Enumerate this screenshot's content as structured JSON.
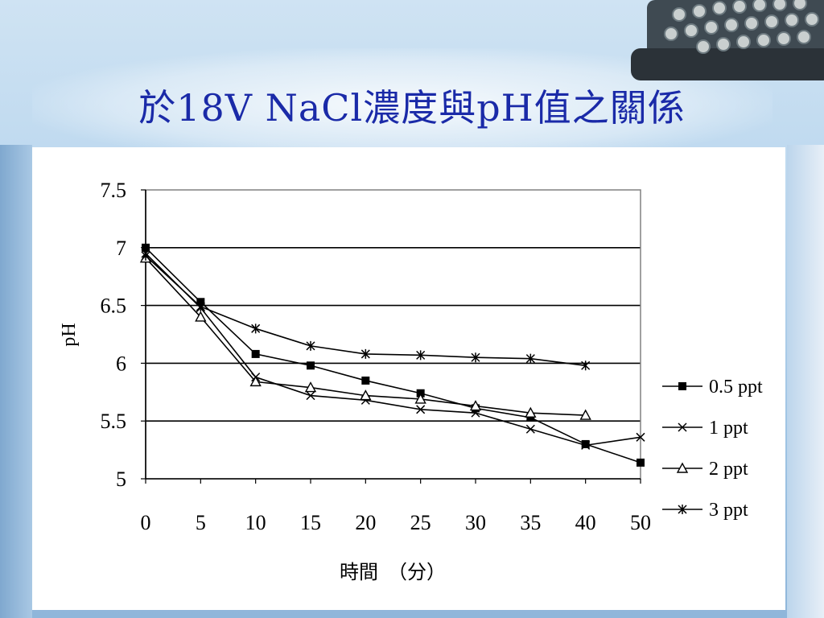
{
  "slide": {
    "title": "於18V NaCl濃度與pH值之關係"
  },
  "chart_data": {
    "type": "line",
    "title": "",
    "xlabel": "時間　（分）",
    "ylabel": "pH",
    "categories": [
      "0",
      "5",
      "10",
      "15",
      "20",
      "25",
      "30",
      "35",
      "40",
      "50"
    ],
    "ylim": [
      5,
      7.5
    ],
    "yticks": [
      "5",
      "5.5",
      "6",
      "6.5",
      "7",
      "7.5"
    ],
    "grid": "horizontal",
    "legend_position": "right",
    "series": [
      {
        "name": "0.5 ppt",
        "marker": "square",
        "values": [
          7.0,
          6.53,
          6.08,
          5.98,
          5.85,
          5.74,
          5.61,
          5.53,
          5.3,
          5.14
        ]
      },
      {
        "name": "1 ppt",
        "marker": "x",
        "values": [
          6.95,
          6.48,
          5.88,
          5.72,
          5.68,
          5.6,
          5.57,
          5.43,
          5.29,
          5.36
        ]
      },
      {
        "name": "2 ppt",
        "marker": "triangle",
        "values": [
          6.91,
          6.4,
          5.84,
          5.79,
          5.72,
          5.69,
          5.63,
          5.57,
          5.55,
          null
        ]
      },
      {
        "name": "3 ppt",
        "marker": "asterisk",
        "values": [
          6.93,
          6.49,
          6.3,
          6.15,
          6.08,
          6.07,
          6.05,
          6.04,
          5.98,
          null
        ]
      }
    ]
  }
}
